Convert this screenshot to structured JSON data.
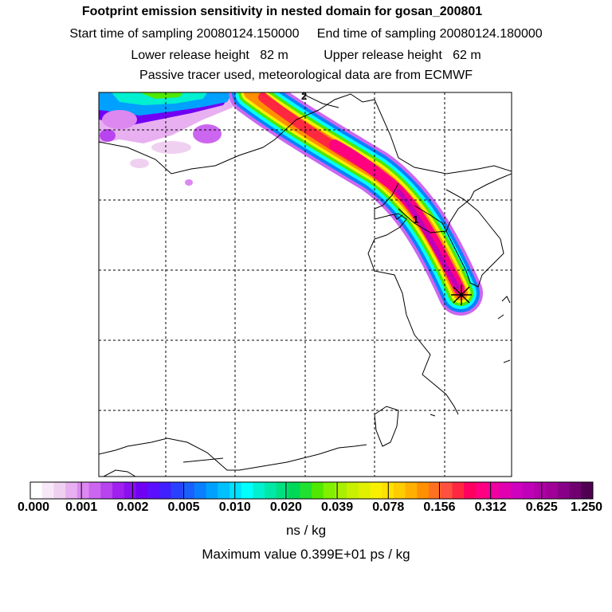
{
  "header": {
    "title": "Footprint emission sensitivity in nested domain for gosan_200801",
    "line2": "Start time of sampling 20080124.150000     End time of sampling 20080124.180000",
    "line3": "Lower release height   82 m          Upper release height   62 m",
    "line4": "Passive tracer used, meteorological data are from ECMWF"
  },
  "map": {
    "markers": [
      "1",
      "2"
    ],
    "receptor_icon": "star-marker-icon"
  },
  "colorbar": {
    "tick_labels": [
      "0.000",
      "0.001",
      "0.002",
      "0.005",
      "0.010",
      "0.020",
      "0.039",
      "0.078",
      "0.156",
      "0.312",
      "0.625",
      "1.250"
    ],
    "colors": [
      "#ffffff",
      "#f7e8f7",
      "#f0d0f0",
      "#e8b0f0",
      "#dc88f0",
      "#cc66f0",
      "#b844f0",
      "#a020f0",
      "#8a10f0",
      "#7000f4",
      "#5a10ff",
      "#4020ff",
      "#2a40ff",
      "#1a60ff",
      "#0a80ff",
      "#00a0ff",
      "#00c0ff",
      "#00e0ff",
      "#00ffff",
      "#00f0d0",
      "#00e8a8",
      "#00e080",
      "#00d858",
      "#20e030",
      "#50e800",
      "#80f000",
      "#a8f000",
      "#c8f000",
      "#e0f000",
      "#f8f000",
      "#ffe000",
      "#ffcc00",
      "#ffb000",
      "#ff9000",
      "#ff7020",
      "#ff5040",
      "#ff2840",
      "#ff0060",
      "#ff0080",
      "#f000a0",
      "#e000b0",
      "#d000c0",
      "#c000b8",
      "#b000a8",
      "#a00098",
      "#880088",
      "#700070",
      "#500050"
    ],
    "units": "ns / kg"
  },
  "footer": {
    "max_value": "Maximum value  0.399E+01 ps / kg"
  }
}
